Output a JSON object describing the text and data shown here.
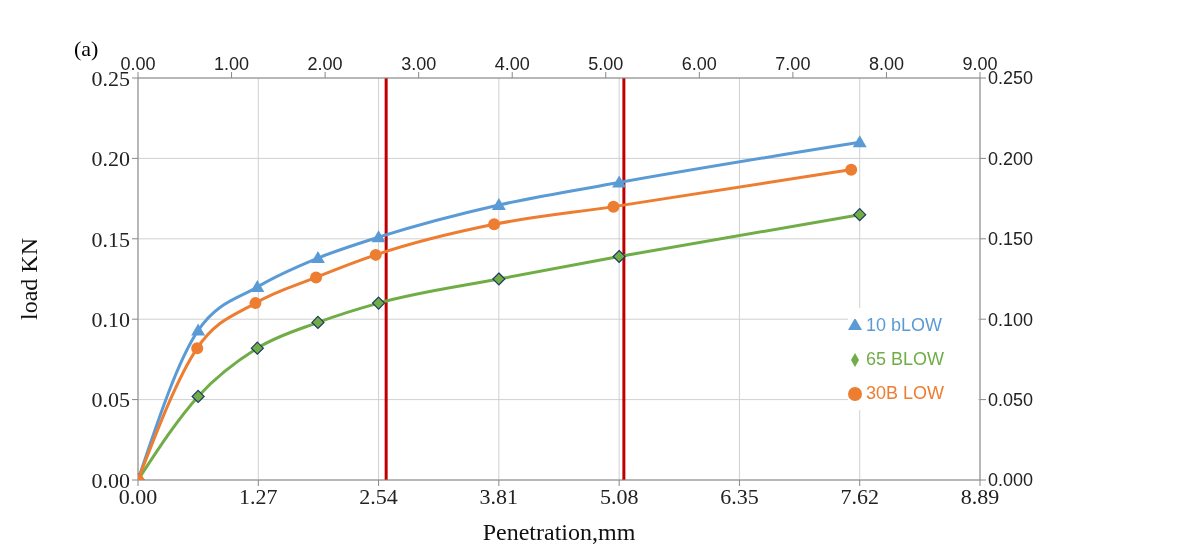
{
  "chart_data": {
    "type": "line",
    "xlabel": "Penetration,mm",
    "ylabel": "load KN",
    "annotations": [
      "(a)"
    ],
    "xlim": [
      0,
      8.89
    ],
    "xticks": [
      {
        "value": 0,
        "label": "0.00"
      },
      {
        "value": 1.27,
        "label": "1.27"
      },
      {
        "value": 2.54,
        "label": "2.54"
      },
      {
        "value": 3.81,
        "label": "3.81"
      },
      {
        "value": 5.08,
        "label": "5.08"
      },
      {
        "value": 6.35,
        "label": "6.35"
      },
      {
        "value": 7.62,
        "label": "7.62"
      },
      {
        "value": 8.89,
        "label": "8.89"
      }
    ],
    "x2lim": [
      0,
      9
    ],
    "x2ticks": [
      {
        "value": 0,
        "label": "0.00"
      },
      {
        "value": 1,
        "label": "1.00"
      },
      {
        "value": 2,
        "label": "2.00"
      },
      {
        "value": 3,
        "label": "3.00"
      },
      {
        "value": 4,
        "label": "4.00"
      },
      {
        "value": 5,
        "label": "5.00"
      },
      {
        "value": 6,
        "label": "6.00"
      },
      {
        "value": 7,
        "label": "7.00"
      },
      {
        "value": 8,
        "label": "8.00"
      },
      {
        "value": 9,
        "label": "9.00"
      }
    ],
    "ylim": [
      0,
      0.25
    ],
    "yticks": [
      {
        "value": 0,
        "label": "0.00"
      },
      {
        "value": 0.05,
        "label": "0.05"
      },
      {
        "value": 0.1,
        "label": "0.10"
      },
      {
        "value": 0.15,
        "label": "0.15"
      },
      {
        "value": 0.2,
        "label": "0.20"
      },
      {
        "value": 0.25,
        "label": "0.25"
      }
    ],
    "y2lim": [
      0,
      0.25
    ],
    "y2ticks": [
      {
        "value": 0,
        "label": "0.000"
      },
      {
        "value": 0.05,
        "label": "0.050"
      },
      {
        "value": 0.1,
        "label": "0.100"
      },
      {
        "value": 0.15,
        "label": "0.150"
      },
      {
        "value": 0.2,
        "label": "0.200"
      },
      {
        "value": 0.25,
        "label": "0.250"
      }
    ],
    "grid": true,
    "legend": "right",
    "ref_lines": [
      {
        "axis": "x",
        "value": 2.62,
        "color": "#c00000"
      },
      {
        "axis": "x",
        "value": 5.13,
        "color": "#c00000"
      }
    ],
    "series": [
      {
        "name": "10 bLOW",
        "color": "#5b9bd5",
        "marker": "triangle",
        "x": [
          0,
          0.635,
          1.26,
          1.9,
          2.54,
          3.81,
          5.08,
          7.62
        ],
        "values": [
          0,
          0.093,
          0.12,
          0.138,
          0.151,
          0.171,
          0.185,
          0.21
        ]
      },
      {
        "name": "65 BLOW",
        "color": "#70ad47",
        "marker": "diamond",
        "x": [
          0,
          0.635,
          1.26,
          1.9,
          2.54,
          3.81,
          5.08,
          7.62
        ],
        "values": [
          0,
          0.052,
          0.082,
          0.098,
          0.11,
          0.125,
          0.139,
          0.165
        ]
      },
      {
        "name": "30B LOW",
        "color": "#ed7d31",
        "marker": "circle",
        "x": [
          0,
          0.625,
          1.24,
          1.88,
          2.51,
          3.76,
          5.02,
          7.53
        ],
        "values": [
          0,
          0.082,
          0.11,
          0.126,
          0.14,
          0.159,
          0.17,
          0.193
        ]
      }
    ]
  }
}
